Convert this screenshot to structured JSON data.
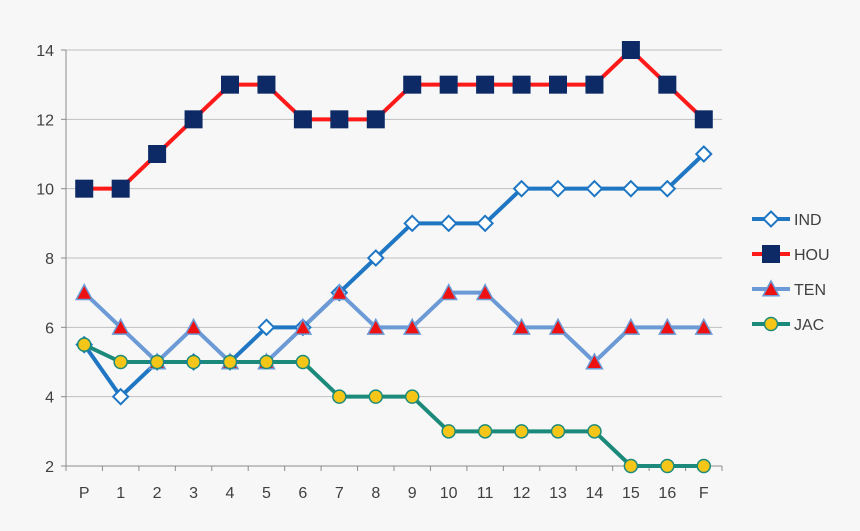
{
  "chart_data": {
    "type": "line",
    "title": "",
    "xlabel": "",
    "ylabel": "",
    "categories": [
      "P",
      "1",
      "2",
      "3",
      "4",
      "5",
      "6",
      "7",
      "8",
      "9",
      "10",
      "11",
      "12",
      "13",
      "14",
      "15",
      "16",
      "F"
    ],
    "ylim": [
      2,
      14
    ],
    "yticks": [
      2,
      4,
      6,
      8,
      10,
      12,
      14
    ],
    "grid": "horizontal",
    "legend_position": "right",
    "series": [
      {
        "name": "IND",
        "line_color": "#1f77c4",
        "marker": "diamond",
        "marker_fill": "#ffffff",
        "marker_edge": "#1f77c4",
        "values": [
          5.5,
          4,
          5,
          5,
          5,
          6,
          6,
          7,
          8,
          9,
          9,
          9,
          10,
          10,
          10,
          10,
          10,
          11
        ]
      },
      {
        "name": "HOU",
        "line_color": "#ff1a1a",
        "marker": "square",
        "marker_fill": "#0d2a66",
        "marker_edge": "#0d2a66",
        "values": [
          10,
          10,
          11,
          12,
          13,
          13,
          12,
          12,
          12,
          13,
          13,
          13,
          13,
          13,
          13,
          14,
          13,
          12
        ]
      },
      {
        "name": "TEN",
        "line_color": "#6b9ad6",
        "marker": "triangle",
        "marker_fill": "#ee1111",
        "marker_edge": "#6b9ad6",
        "values": [
          7,
          6,
          5,
          6,
          5,
          5,
          6,
          7,
          6,
          6,
          7,
          7,
          6,
          6,
          5,
          6,
          6,
          6
        ]
      },
      {
        "name": "JAC",
        "line_color": "#1b8a7a",
        "marker": "circle",
        "marker_fill": "#f5c518",
        "marker_edge": "#1b8a7a",
        "values": [
          5.5,
          5,
          5,
          5,
          5,
          5,
          5,
          4,
          4,
          4,
          3,
          3,
          3,
          3,
          3,
          2,
          2,
          2
        ]
      }
    ]
  }
}
